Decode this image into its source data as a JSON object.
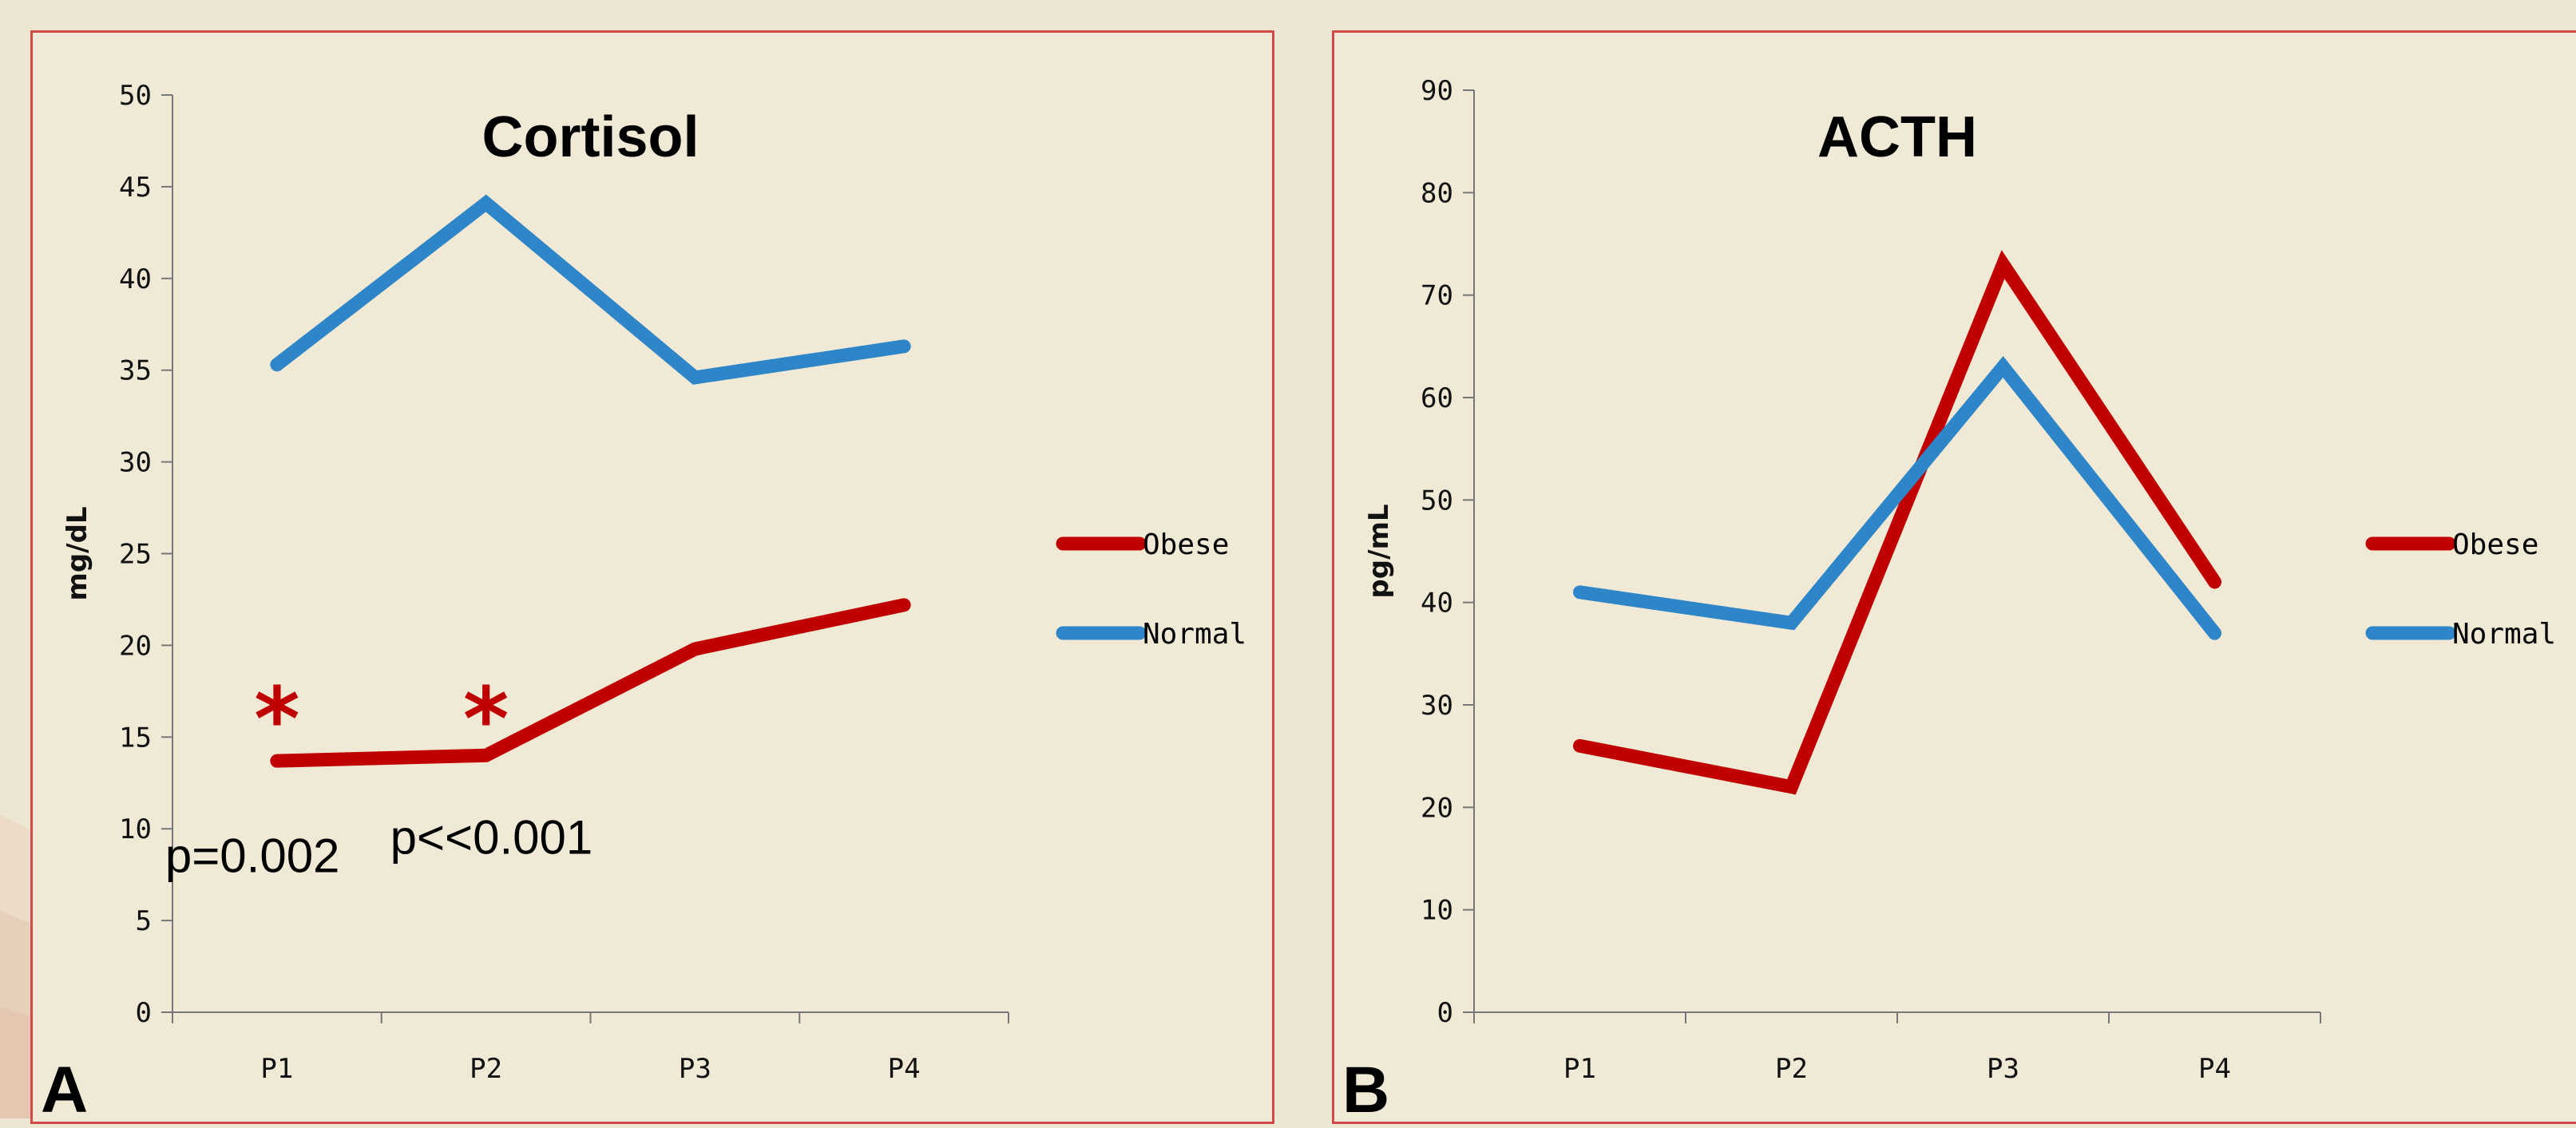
{
  "panels": [
    {
      "letter": "A",
      "chart_data": {
        "type": "line",
        "title": "Cortisol",
        "ylabel": "mg/dL",
        "xlabel": "",
        "categories": [
          "P1",
          "P2",
          "P3",
          "P4"
        ],
        "ylim": [
          0,
          50
        ],
        "yticks": [
          0,
          5,
          10,
          15,
          20,
          25,
          30,
          35,
          40,
          45,
          50
        ],
        "series": [
          {
            "name": "Obese",
            "color": "#c00000",
            "values": [
              13.7,
              14.0,
              19.8,
              22.2
            ]
          },
          {
            "name": "Normal",
            "color": "#2e86c8",
            "values": [
              35.3,
              44.1,
              34.6,
              36.3
            ]
          }
        ],
        "annotations": [
          {
            "text": "*",
            "category": "P1",
            "y": 16.5,
            "kind": "star"
          },
          {
            "text": "*",
            "category": "P2",
            "y": 16.5,
            "kind": "star"
          },
          {
            "text": "p=0.002",
            "category": "P1",
            "y": 8.5,
            "kind": "text"
          },
          {
            "text": "p<<0.001",
            "category": "P2",
            "y": 9.5,
            "kind": "text"
          }
        ],
        "legend": "right"
      }
    },
    {
      "letter": "B",
      "chart_data": {
        "type": "line",
        "title": "ACTH",
        "ylabel": "pg/mL",
        "xlabel": "",
        "categories": [
          "P1",
          "P2",
          "P3",
          "P4"
        ],
        "ylim": [
          0,
          90
        ],
        "yticks": [
          0,
          10,
          20,
          30,
          40,
          50,
          60,
          70,
          80,
          90
        ],
        "series": [
          {
            "name": "Obese",
            "color": "#c00000",
            "values": [
              26,
              22,
              73,
              42
            ]
          },
          {
            "name": "Normal",
            "color": "#2e86c8",
            "values": [
              41,
              38,
              63,
              37
            ]
          }
        ],
        "annotations": [],
        "legend": "right"
      }
    }
  ]
}
